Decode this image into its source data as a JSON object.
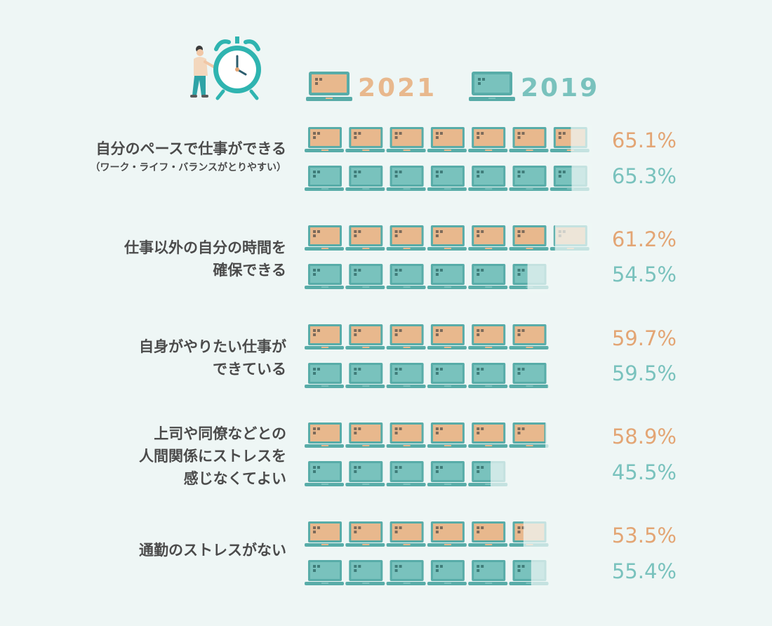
{
  "chart_data": {
    "type": "bar",
    "unit": "%",
    "series": [
      {
        "name": "2021",
        "color": "#e8b88d",
        "values": [
          65.1,
          61.2,
          59.7,
          58.9,
          53.5
        ]
      },
      {
        "name": "2019",
        "color": "#79c2bd",
        "values": [
          65.3,
          54.5,
          59.5,
          45.5,
          55.4
        ]
      }
    ],
    "categories": [
      {
        "lines": [
          "自分のペースで仕事ができる"
        ],
        "note": "（ワーク・ライフ・バランスがとりやすい）"
      },
      {
        "lines": [
          "仕事以外の自分の時間を",
          "確保できる"
        ]
      },
      {
        "lines": [
          "自身がやりたい仕事が",
          "できている"
        ]
      },
      {
        "lines": [
          "上司や同僚などとの",
          "人間関係にストレスを",
          "感じなくてよい"
        ]
      },
      {
        "lines": [
          "通勤のストレスがない"
        ]
      }
    ],
    "value_labels": [
      [
        "65.1%",
        "65.3%"
      ],
      [
        "61.2%",
        "54.5%"
      ],
      [
        "59.7%",
        "59.5%"
      ],
      [
        "58.9%",
        "45.5%"
      ],
      [
        "53.5%",
        "55.4%"
      ]
    ],
    "icon": "laptop-icon",
    "illustration": "person-with-alarm-clock-icon"
  }
}
